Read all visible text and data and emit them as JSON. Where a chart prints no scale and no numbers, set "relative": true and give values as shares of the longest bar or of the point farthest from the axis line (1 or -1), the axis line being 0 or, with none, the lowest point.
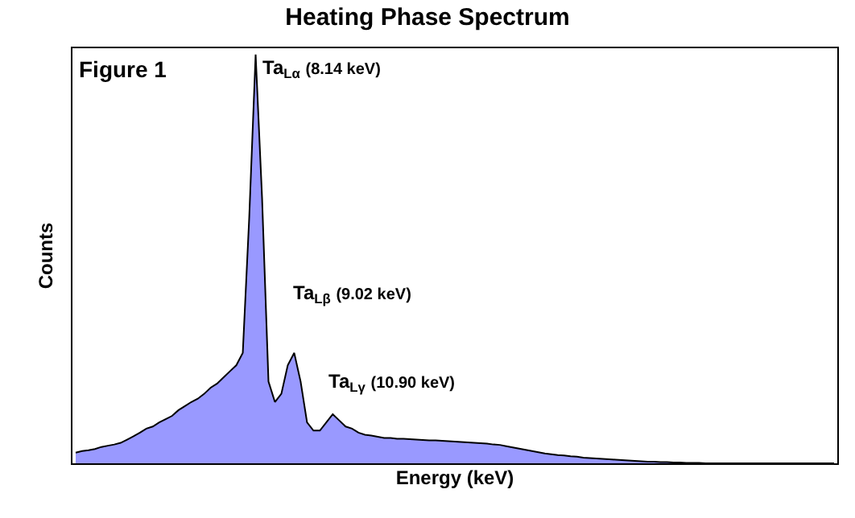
{
  "chart_data": {
    "type": "area",
    "title": "Heating Phase Spectrum",
    "xlabel": "Energy (keV)",
    "ylabel": "Counts",
    "relative": true,
    "categories": [
      null,
      null,
      null,
      null,
      null,
      null,
      null,
      null,
      null,
      null,
      null,
      null,
      null,
      null,
      null,
      null,
      null,
      null,
      null,
      null,
      null,
      null,
      null,
      null,
      null,
      null,
      null,
      null,
      null,
      null,
      null,
      null,
      null,
      null,
      null,
      null,
      null,
      null,
      null,
      null,
      null,
      null,
      null,
      null,
      null,
      null,
      null,
      null,
      null,
      null,
      null,
      null,
      null,
      null,
      null,
      null,
      null,
      null,
      null,
      null,
      null,
      null,
      null,
      null,
      null,
      null,
      null,
      null,
      null,
      null,
      null,
      null,
      null,
      null,
      null,
      null,
      null,
      null,
      null,
      null,
      null,
      null,
      null,
      null,
      null,
      null,
      null,
      null,
      null,
      null,
      null,
      null,
      null,
      null,
      null,
      null,
      null,
      null,
      null,
      null,
      null,
      null,
      null,
      null,
      null,
      null,
      null,
      null,
      null,
      null,
      null,
      null,
      null,
      null,
      null,
      null,
      null,
      null,
      null
    ],
    "series": [
      {
        "color": "#9999ff",
        "values": [
          0.026,
          0.03,
          0.032,
          0.035,
          0.04,
          0.043,
          0.046,
          0.05,
          0.058,
          0.066,
          0.075,
          0.085,
          0.09,
          0.1,
          0.108,
          0.116,
          0.13,
          0.14,
          0.15,
          0.158,
          0.17,
          0.185,
          0.195,
          0.21,
          0.225,
          0.24,
          0.27,
          0.6,
          1.0,
          0.65,
          0.2,
          0.15,
          0.17,
          0.24,
          0.27,
          0.2,
          0.1,
          0.08,
          0.08,
          0.1,
          0.12,
          0.105,
          0.09,
          0.085,
          0.075,
          0.07,
          0.068,
          0.065,
          0.062,
          0.062,
          0.06,
          0.06,
          0.059,
          0.058,
          0.057,
          0.056,
          0.056,
          0.055,
          0.054,
          0.053,
          0.052,
          0.051,
          0.05,
          0.049,
          0.048,
          0.046,
          0.045,
          0.042,
          0.039,
          0.036,
          0.033,
          0.03,
          0.027,
          0.024,
          0.022,
          0.02,
          0.019,
          0.017,
          0.016,
          0.014,
          0.013,
          0.012,
          0.011,
          0.01,
          0.009,
          0.008,
          0.007,
          0.006,
          0.005,
          0.004,
          0.004,
          0.003,
          0.003,
          0.002,
          0.002,
          0.001,
          0.001,
          0.001,
          0,
          0,
          0,
          0,
          0,
          0,
          0,
          0,
          0,
          0,
          0,
          0,
          0,
          0,
          0,
          0,
          0,
          0,
          0,
          0,
          0
        ]
      }
    ],
    "annotations": [
      "Figure 1",
      "Ta$_{Lα}$ (8.14 keV)",
      "Ta$_{Lβ}$ (9.02 keV)",
      "Ta$_{Lγ}$ (10.90 keV)"
    ]
  }
}
